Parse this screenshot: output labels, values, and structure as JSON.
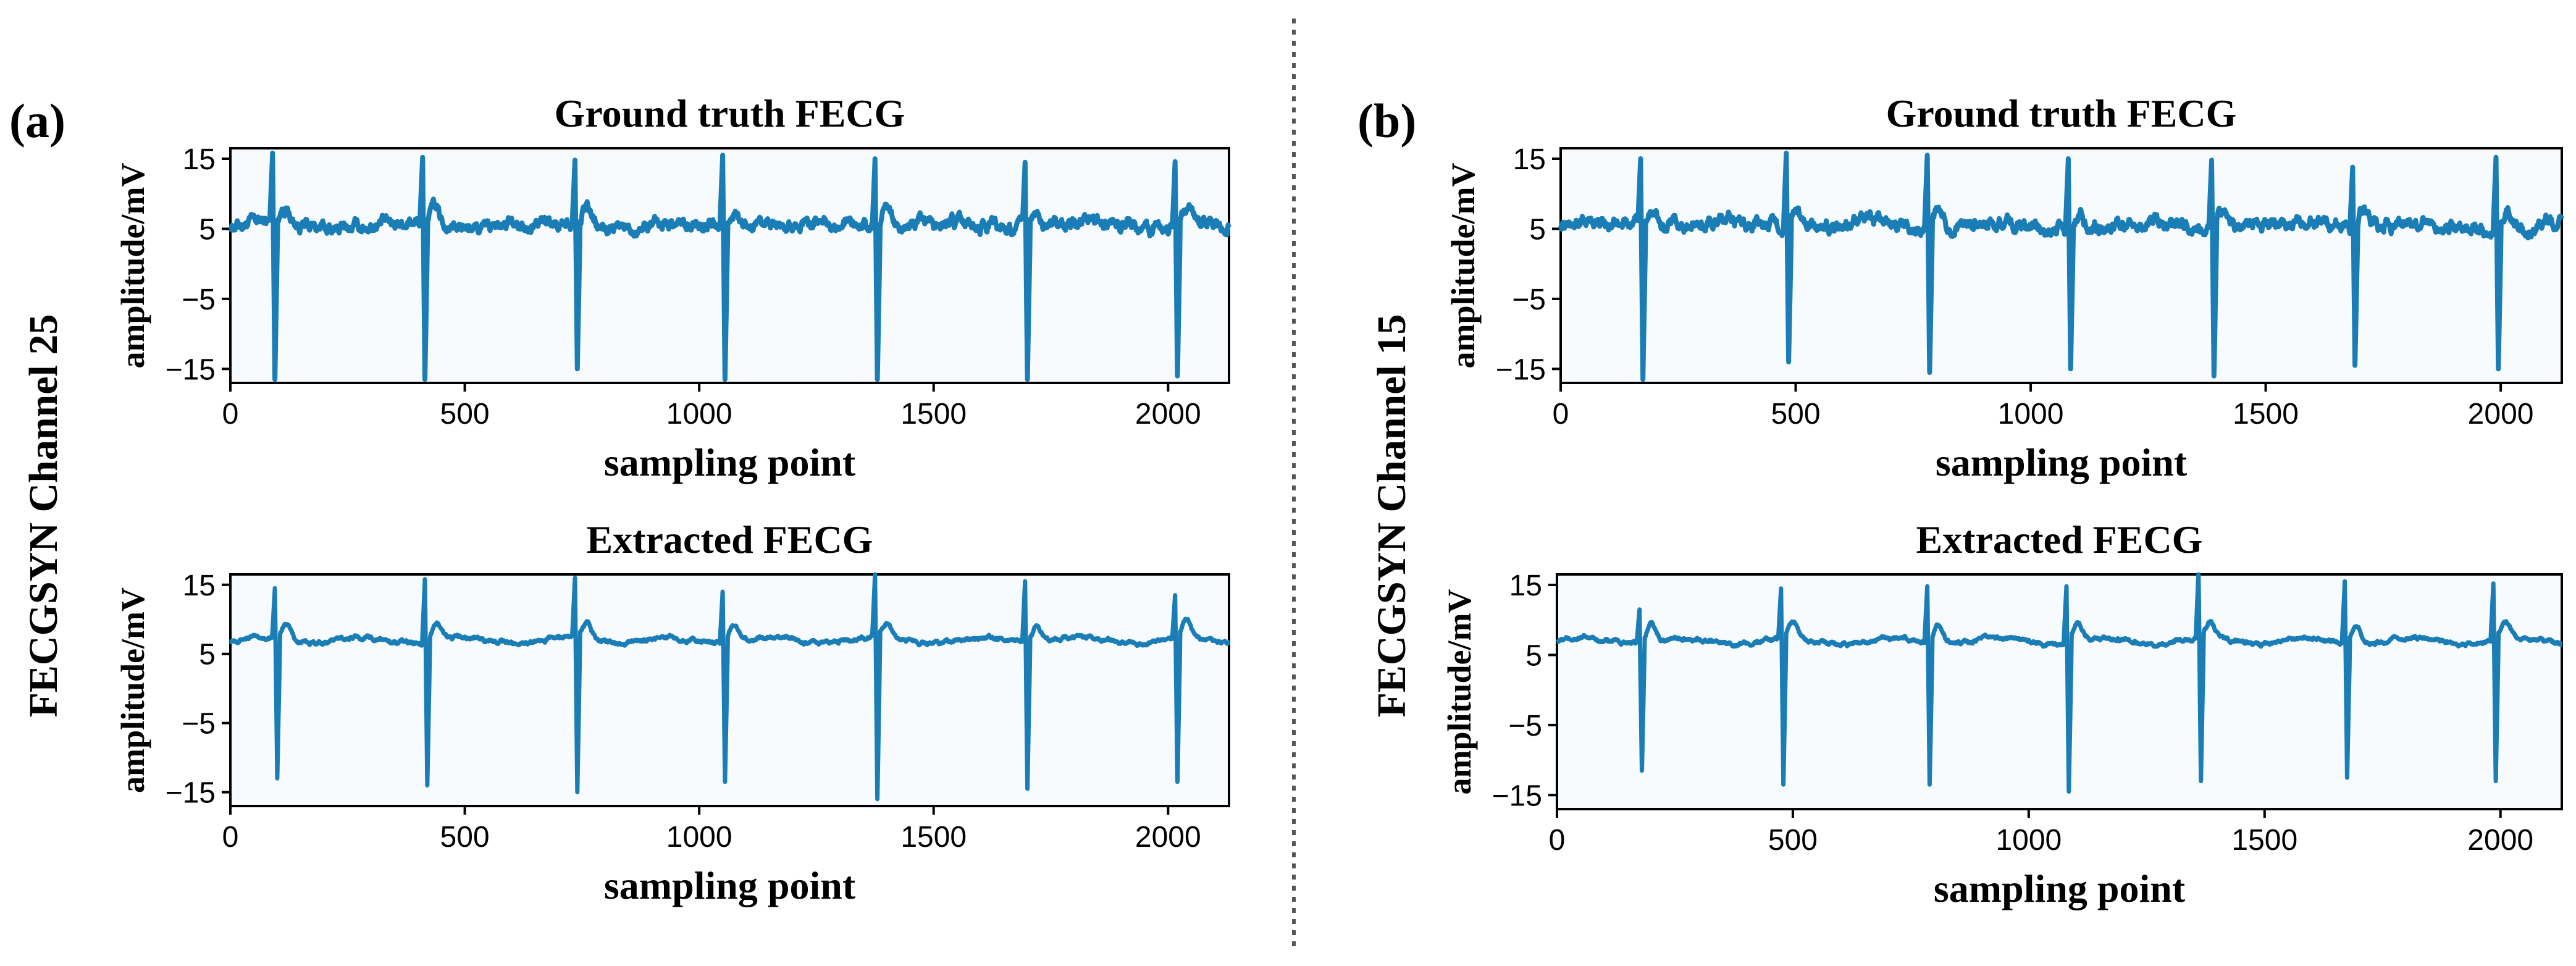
{
  "panels": [
    {
      "letter": "(a)",
      "channel_label": "FECGSYN Channel 25",
      "beats": [
        90,
        410,
        735,
        1050,
        1375,
        1695,
        2015
      ],
      "beat_depths": [
        -16.5,
        -16.5,
        -15,
        -16.5,
        -16.5,
        -16.5,
        -16
      ],
      "beat_peaks": [
        15.8,
        15.2,
        14.8,
        15.5,
        15,
        14.5,
        14.6
      ],
      "extracted_beats": [
        95,
        415,
        735,
        1050,
        1375,
        1695,
        2015
      ],
      "extracted_depths": [
        -13,
        -14,
        -15,
        -13.5,
        -16,
        -14.5,
        -13.5
      ],
      "extracted_peaks": [
        14.5,
        15.8,
        16,
        14,
        16.5,
        15.5,
        13.5
      ]
    },
    {
      "letter": "(b)",
      "channel_label": "FECGSYN Channel 15",
      "beats": [
        170,
        480,
        780,
        1080,
        1385,
        1685,
        1990
      ],
      "beat_depths": [
        -16.5,
        -14,
        -15.5,
        -15,
        -16,
        -14.5,
        -15
      ],
      "beat_peaks": [
        15,
        15.8,
        15.5,
        15,
        14.8,
        13.8,
        15.2
      ],
      "extracted_beats": [
        175,
        475,
        785,
        1080,
        1360,
        1670,
        1985
      ],
      "extracted_depths": [
        -11.5,
        -13.5,
        -13.5,
        -14.5,
        -13,
        -12.5,
        -13
      ],
      "extracted_peaks": [
        11.5,
        14.5,
        14.8,
        14.8,
        17,
        15.5,
        15.2
      ]
    }
  ],
  "chart_data": [
    {
      "type": "line",
      "panel": "a",
      "title": "Ground truth FECG",
      "xlabel": "sampling point",
      "ylabel": "amplitude/mV",
      "xlim": [
        0,
        2130
      ],
      "ylim": [
        -17,
        16.5
      ],
      "xticks": [
        0,
        500,
        1000,
        1500,
        2000
      ],
      "yticks": [
        15,
        5,
        -5,
        -15
      ],
      "series": [
        {
          "name": "Ground truth FECG",
          "color": "#1a7db5",
          "baseline": 5.5,
          "description": "FECG with 7 QRS complexes at approx x = 90, 410, 735, 1050, 1375, 1695, 2015"
        }
      ]
    },
    {
      "type": "line",
      "panel": "a",
      "title": "Extracted FECG",
      "xlabel": "sampling point",
      "ylabel": "amplitude/mV",
      "xlim": [
        0,
        2130
      ],
      "ylim": [
        -17,
        16.5
      ],
      "xticks": [
        0,
        500,
        1000,
        1500,
        2000
      ],
      "yticks": [
        15,
        5,
        -5,
        -15
      ],
      "series": [
        {
          "name": "Extracted FECG",
          "color": "#1a7db5",
          "baseline": 7.0
        }
      ]
    },
    {
      "type": "line",
      "panel": "b",
      "title": "Ground truth FECG",
      "xlabel": "sampling point",
      "ylabel": "amplitude/mV",
      "xlim": [
        0,
        2130
      ],
      "ylim": [
        -17,
        16.5
      ],
      "xticks": [
        0,
        500,
        1000,
        1500,
        2000
      ],
      "yticks": [
        15,
        5,
        -5,
        -15
      ],
      "series": [
        {
          "name": "Ground truth FECG",
          "color": "#1a7db5",
          "baseline": 5.5
        }
      ]
    },
    {
      "type": "line",
      "panel": "b",
      "title": "Extracted FECG",
      "xlabel": "sampling point",
      "ylabel": "amplitude/mV",
      "xlim": [
        0,
        2130
      ],
      "ylim": [
        -17,
        16.5
      ],
      "xticks": [
        0,
        500,
        1000,
        1500,
        2000
      ],
      "yticks": [
        15,
        5,
        -5,
        -15
      ],
      "series": [
        {
          "name": "Extracted FECG",
          "color": "#1a7db5",
          "baseline": 7.0
        }
      ]
    }
  ]
}
